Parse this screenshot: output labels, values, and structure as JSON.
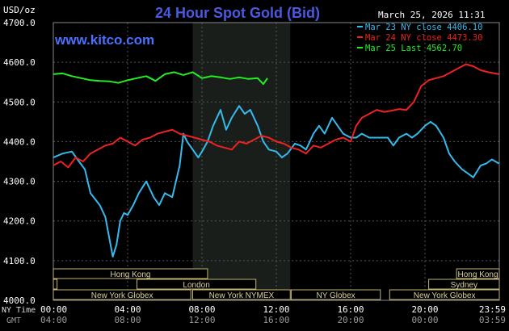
{
  "chart_data": {
    "type": "line",
    "title": "24 Hour Spot Gold (Bid)",
    "website": "www.kitco.com",
    "datetime": "March 25, 2026 11:31",
    "y_unit": "USD/oz",
    "ylim": [
      4000,
      4700
    ],
    "yticks": [
      "4700.0",
      "4600.0",
      "4500.0",
      "4400.0",
      "4300.0",
      "4200.0",
      "4100.0",
      "4000.0"
    ],
    "xlim": [
      0,
      24
    ],
    "x_row1_label": "NY Time",
    "x_row2_label": "GMT",
    "xticks_ny": [
      "00:00",
      "04:00",
      "08:00",
      "12:00",
      "16:00",
      "20:00",
      "23:59"
    ],
    "xticks_gmt": [
      "04:00",
      "08:00",
      "12:00",
      "16:00",
      "20:00",
      "00:00",
      "03:59"
    ],
    "colors": {
      "background": "#000000",
      "plot_bg": "#000000",
      "session_shade": "#1a1e1a",
      "grid": "#555555",
      "axis_text": "#ffffff",
      "title": "#4a5ae0",
      "website": "#4a70ff",
      "market_bar": "#000000",
      "market_border": "#c0b470",
      "market_text": "#d8d0a0"
    },
    "session_shade_hours": [
      7.5,
      12.75
    ],
    "legend": [
      {
        "label": "Mar 23 NY close 4406.10",
        "color": "#33bbee"
      },
      {
        "label": "Mar 24 NY close 4473.30",
        "color": "#ee2222"
      },
      {
        "label": "Mar 25 Last 4562.70",
        "color": "#22ee22"
      }
    ],
    "series": [
      {
        "name": "Mar 23",
        "color": "#33bbee",
        "x": [
          0,
          0.5,
          1,
          1.3,
          1.7,
          2,
          2.5,
          2.8,
          3,
          3.2,
          3.4,
          3.6,
          3.8,
          4,
          4.3,
          4.6,
          5,
          5.4,
          5.7,
          6,
          6.4,
          6.8,
          7,
          7.2,
          7.5,
          7.8,
          8,
          8.3,
          8.6,
          9,
          9.3,
          9.6,
          10,
          10.3,
          10.6,
          11,
          11.3,
          11.6,
          12,
          12.3,
          12.6,
          13,
          13.3,
          13.6,
          14,
          14.3,
          14.6,
          15,
          15.3,
          15.6,
          16,
          16.3,
          16.6,
          17,
          17.5,
          18,
          18.3,
          18.6,
          19,
          19.3,
          19.6,
          20,
          20.3,
          20.6,
          21,
          21.3,
          21.6,
          22,
          22.3,
          22.6,
          23,
          23.3,
          23.6,
          23.98
        ],
        "y": [
          4360,
          4370,
          4375,
          4355,
          4330,
          4270,
          4240,
          4210,
          4160,
          4110,
          4140,
          4200,
          4220,
          4215,
          4240,
          4270,
          4300,
          4260,
          4240,
          4270,
          4260,
          4340,
          4420,
          4400,
          4380,
          4360,
          4375,
          4400,
          4440,
          4480,
          4430,
          4460,
          4490,
          4470,
          4480,
          4440,
          4400,
          4380,
          4375,
          4360,
          4370,
          4395,
          4390,
          4380,
          4420,
          4440,
          4420,
          4460,
          4440,
          4420,
          4410,
          4410,
          4420,
          4410,
          4410,
          4410,
          4390,
          4410,
          4420,
          4410,
          4420,
          4440,
          4450,
          4440,
          4410,
          4370,
          4350,
          4330,
          4320,
          4310,
          4340,
          4345,
          4355,
          4345
        ]
      },
      {
        "name": "Mar 24",
        "color": "#ee2222",
        "x": [
          0,
          0.4,
          0.8,
          1.2,
          1.6,
          2,
          2.4,
          2.8,
          3.2,
          3.6,
          4,
          4.4,
          4.8,
          5.2,
          5.6,
          6,
          6.4,
          6.8,
          7.2,
          7.6,
          8,
          8.4,
          8.8,
          9.2,
          9.6,
          10,
          10.4,
          10.8,
          11.2,
          11.6,
          12,
          12.4,
          12.8,
          13.2,
          13.6,
          14,
          14.4,
          14.8,
          15.2,
          15.6,
          16,
          16.3,
          16.6,
          17,
          17.4,
          17.8,
          18.2,
          18.6,
          19,
          19.4,
          19.8,
          20.2,
          20.6,
          21,
          21.4,
          21.8,
          22.2,
          22.6,
          23,
          23.4,
          23.98
        ],
        "y": [
          4340,
          4350,
          4335,
          4360,
          4350,
          4370,
          4380,
          4390,
          4395,
          4410,
          4400,
          4390,
          4405,
          4410,
          4420,
          4425,
          4430,
          4420,
          4415,
          4410,
          4405,
          4400,
          4390,
          4385,
          4380,
          4400,
          4395,
          4405,
          4415,
          4410,
          4400,
          4395,
          4385,
          4380,
          4370,
          4390,
          4385,
          4395,
          4405,
          4410,
          4400,
          4440,
          4460,
          4470,
          4480,
          4475,
          4478,
          4482,
          4480,
          4500,
          4540,
          4555,
          4560,
          4565,
          4575,
          4585,
          4595,
          4590,
          4580,
          4575,
          4570
        ]
      },
      {
        "name": "Mar 25",
        "color": "#22ee22",
        "x": [
          0,
          0.5,
          1,
          1.5,
          2,
          2.5,
          3,
          3.5,
          4,
          4.5,
          5,
          5.5,
          6,
          6.5,
          7,
          7.5,
          8,
          8.5,
          9,
          9.5,
          10,
          10.5,
          11,
          11.3,
          11.52
        ],
        "y": [
          4570,
          4572,
          4565,
          4560,
          4555,
          4553,
          4552,
          4548,
          4555,
          4560,
          4565,
          4553,
          4570,
          4575,
          4568,
          4575,
          4560,
          4565,
          4562,
          4558,
          4562,
          4558,
          4560,
          4545,
          4560
        ]
      }
    ],
    "market_rows": [
      [
        {
          "label": "Hong Kong",
          "start": 0,
          "end": 8.3
        },
        {
          "label": "Hong Kong",
          "start": 21.7,
          "end": 24
        }
      ],
      [
        {
          "label": "London",
          "start": 0,
          "end": 0.2
        },
        {
          "label": "London",
          "start": 4.5,
          "end": 10.9
        },
        {
          "label": "Sydney",
          "start": 20.2,
          "end": 24
        }
      ],
      [
        {
          "label": "New York Globex",
          "start": 0,
          "end": 7.4
        },
        {
          "label": "New York NYMEX",
          "start": 7.5,
          "end": 12.75
        },
        {
          "label": "NY Globex",
          "start": 12.8,
          "end": 17.6
        },
        {
          "label": "New York Globex",
          "start": 18.1,
          "end": 24
        }
      ]
    ]
  }
}
